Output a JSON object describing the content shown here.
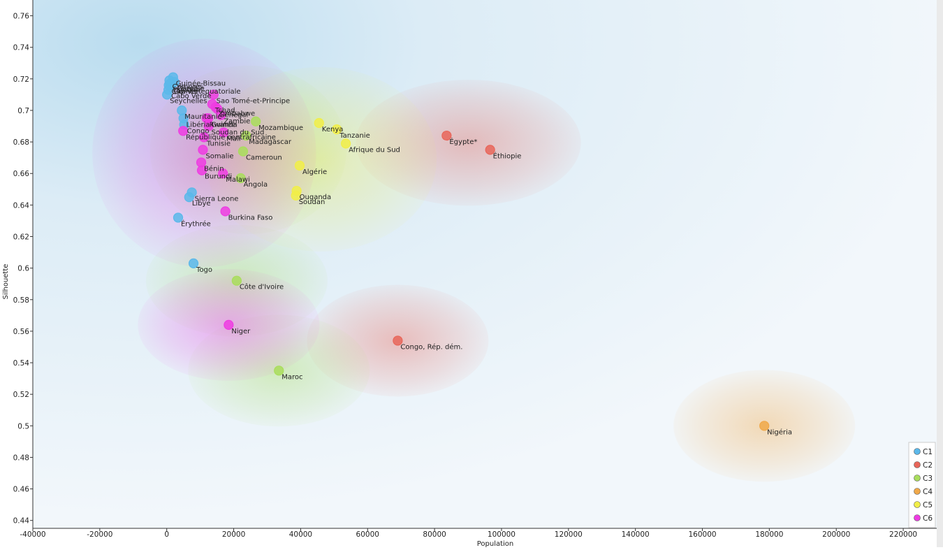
{
  "chart_data": {
    "type": "scatter",
    "title": "",
    "xlabel": "Population",
    "ylabel": "Silhouette",
    "xlim": [
      -40000,
      230000
    ],
    "ylim": [
      0.435,
      0.77
    ],
    "xticks": [
      -40000,
      -20000,
      0,
      20000,
      40000,
      60000,
      80000,
      100000,
      120000,
      140000,
      160000,
      180000,
      200000,
      220000
    ],
    "yticks": [
      0.44,
      0.46,
      0.48,
      0.5,
      0.52,
      0.54,
      0.56,
      0.58,
      0.6,
      0.62,
      0.64,
      0.66,
      0.68,
      0.7,
      0.72,
      0.74,
      0.76
    ],
    "grid": false,
    "legend": "bottom-right",
    "clusters": [
      {
        "name": "C1",
        "color": "#5bb8ea"
      },
      {
        "name": "C2",
        "color": "#e8665a"
      },
      {
        "name": "C3",
        "color": "#a9dd5c"
      },
      {
        "name": "C4",
        "color": "#f0a848"
      },
      {
        "name": "C5",
        "color": "#f1ee48"
      },
      {
        "name": "C6",
        "color": "#ee3ce2"
      }
    ],
    "points": [
      {
        "label": "Guinée-Bissau",
        "x": 1900,
        "y": 0.721,
        "cluster": "C1"
      },
      {
        "label": "Guinée équatoriale",
        "x": 1300,
        "y": 0.716,
        "cluster": "C1"
      },
      {
        "label": "Cap-Vert",
        "x": 600,
        "y": 0.716,
        "cluster": "C1"
      },
      {
        "label": "Gambie",
        "x": 2300,
        "y": 0.718,
        "cluster": "C1"
      },
      {
        "label": "Comores",
        "x": 800,
        "y": 0.719,
        "cluster": "C1"
      },
      {
        "label": "Djibouti",
        "x": 1000,
        "y": 0.717,
        "cluster": "C1"
      },
      {
        "label": "Cabo Verde",
        "x": 500,
        "y": 0.713,
        "cluster": "C1"
      },
      {
        "label": "Seychelles",
        "x": 100,
        "y": 0.71,
        "cluster": "C1"
      },
      {
        "label": "Mauritanie",
        "x": 4500,
        "y": 0.7,
        "cluster": "C1"
      },
      {
        "label": "Libéria",
        "x": 5000,
        "y": 0.695,
        "cluster": "C1"
      },
      {
        "label": "Congo",
        "x": 5200,
        "y": 0.691,
        "cluster": "C1"
      },
      {
        "label": "Sierra Leone",
        "x": 7500,
        "y": 0.648,
        "cluster": "C1"
      },
      {
        "label": "Libye",
        "x": 6700,
        "y": 0.645,
        "cluster": "C1"
      },
      {
        "label": "Érythrée",
        "x": 3400,
        "y": 0.632,
        "cluster": "C1"
      },
      {
        "label": "Togo",
        "x": 8000,
        "y": 0.603,
        "cluster": "C1"
      },
      {
        "label": "Égypte*",
        "x": 83600,
        "y": 0.684,
        "cluster": "C2"
      },
      {
        "label": "Éthiopie",
        "x": 96600,
        "y": 0.675,
        "cluster": "C2"
      },
      {
        "label": "Congo, Rép. dém.",
        "x": 69000,
        "y": 0.554,
        "cluster": "C2"
      },
      {
        "label": "Mozambique",
        "x": 26600,
        "y": 0.693,
        "cluster": "C3"
      },
      {
        "label": "Madagascar",
        "x": 23700,
        "y": 0.684,
        "cluster": "C3"
      },
      {
        "label": "Cameroun",
        "x": 22800,
        "y": 0.674,
        "cluster": "C3"
      },
      {
        "label": "Angola",
        "x": 22100,
        "y": 0.657,
        "cluster": "C3"
      },
      {
        "label": "Côte d'Ivoire",
        "x": 20900,
        "y": 0.592,
        "cluster": "C3"
      },
      {
        "label": "Maroc",
        "x": 33500,
        "y": 0.535,
        "cluster": "C3"
      },
      {
        "label": "Nigéria",
        "x": 178500,
        "y": 0.5,
        "cluster": "C4"
      },
      {
        "label": "Kenya",
        "x": 45500,
        "y": 0.692,
        "cluster": "C5"
      },
      {
        "label": "Tanzanie",
        "x": 50800,
        "y": 0.688,
        "cluster": "C5"
      },
      {
        "label": "Afrique du Sud",
        "x": 53500,
        "y": 0.679,
        "cluster": "C5"
      },
      {
        "label": "Algérie",
        "x": 39700,
        "y": 0.665,
        "cluster": "C5"
      },
      {
        "label": "Ouganda",
        "x": 38800,
        "y": 0.649,
        "cluster": "C5"
      },
      {
        "label": "Soudan",
        "x": 38600,
        "y": 0.646,
        "cluster": "C5"
      },
      {
        "label": "Sao Tomé-et-Principe",
        "x": 14000,
        "y": 0.71,
        "cluster": "C6"
      },
      {
        "label": "Tchad",
        "x": 13600,
        "y": 0.704,
        "cluster": "C6"
      },
      {
        "label": "Zimbabwe",
        "x": 14600,
        "y": 0.702,
        "cluster": "C6"
      },
      {
        "label": "Sénégal",
        "x": 15100,
        "y": 0.701,
        "cluster": "C6"
      },
      {
        "label": "Zambie",
        "x": 16200,
        "y": 0.697,
        "cluster": "C6"
      },
      {
        "label": "Rwanda",
        "x": 11900,
        "y": 0.695,
        "cluster": "C6"
      },
      {
        "label": "Guinée",
        "x": 12400,
        "y": 0.695,
        "cluster": "C6"
      },
      {
        "label": "Soudan du Sud",
        "x": 12500,
        "y": 0.69,
        "cluster": "C6"
      },
      {
        "label": "République centrafricaine",
        "x": 4900,
        "y": 0.687,
        "cluster": "C6"
      },
      {
        "label": "Mali",
        "x": 17000,
        "y": 0.686,
        "cluster": "C6"
      },
      {
        "label": "Tunisie",
        "x": 11100,
        "y": 0.683,
        "cluster": "C6"
      },
      {
        "label": "Somalie",
        "x": 10800,
        "y": 0.675,
        "cluster": "C6"
      },
      {
        "label": "Bénin",
        "x": 10300,
        "y": 0.667,
        "cluster": "C6"
      },
      {
        "label": "Burundi",
        "x": 10500,
        "y": 0.662,
        "cluster": "C6"
      },
      {
        "label": "Malawi",
        "x": 16800,
        "y": 0.66,
        "cluster": "C6"
      },
      {
        "label": "Burkina Faso",
        "x": 17500,
        "y": 0.636,
        "cluster": "C6"
      },
      {
        "label": "Niger",
        "x": 18500,
        "y": 0.564,
        "cluster": "C6"
      }
    ]
  }
}
